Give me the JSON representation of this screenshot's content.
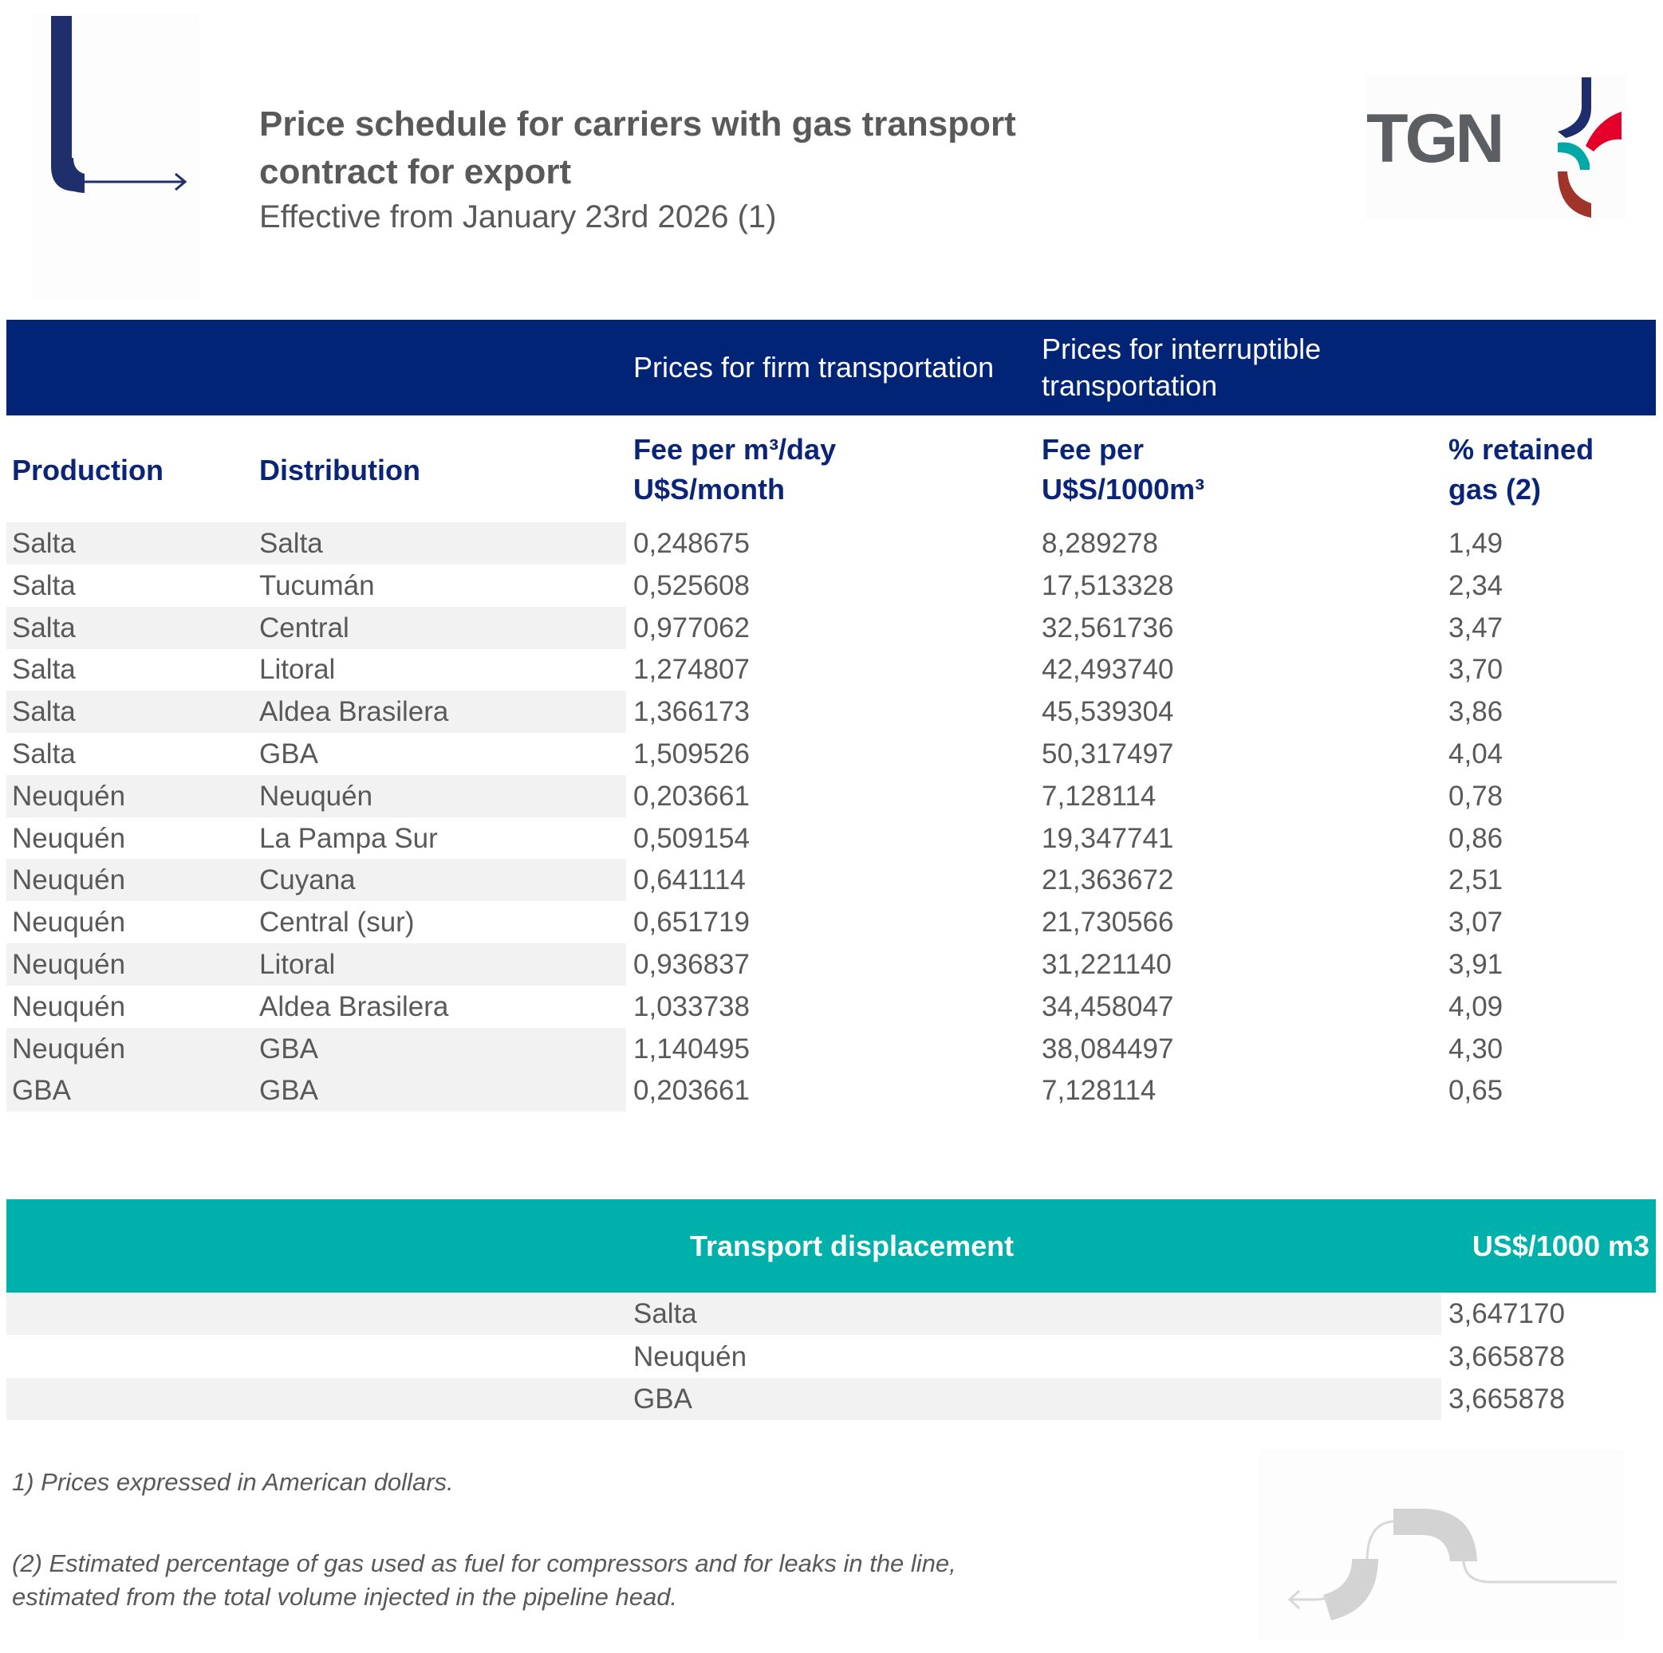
{
  "header": {
    "title_line1": "Price schedule for carriers with gas transport",
    "title_line2": "contract for export",
    "subtitle": "Effective from January 23rd 2026 (1)",
    "logo_text": "TGN"
  },
  "colors": {
    "header_blue": "#012477",
    "teal": "#00b0aa",
    "row_shade": "#f2f2f2",
    "text": "#595959",
    "logo_red": "#e4002b",
    "logo_teal": "#00a9a5",
    "logo_navy": "#1e2d6e",
    "logo_brown": "#a0342a"
  },
  "table": {
    "group_headers": {
      "firm": "Prices for firm transportation",
      "interruptible": "Prices for interruptible transportation"
    },
    "columns": {
      "production": "Production",
      "distribution": "Distribution",
      "firm_l1": "Fee per m³/day",
      "firm_l2": "U$S/month",
      "inter_l1": "Fee per",
      "inter_l2": "U$S/1000m³",
      "ret_l1": "% retained",
      "ret_l2": "gas (2)"
    },
    "rows": [
      [
        "Salta",
        "Salta",
        "0,248675",
        "8,289278",
        "1,49"
      ],
      [
        "Salta",
        "Tucumán",
        "0,525608",
        "17,513328",
        "2,34"
      ],
      [
        "Salta",
        "Central",
        "0,977062",
        "32,561736",
        "3,47"
      ],
      [
        "Salta",
        "Litoral",
        "1,274807",
        "42,493740",
        "3,70"
      ],
      [
        "Salta",
        "Aldea Brasilera",
        "1,366173",
        "45,539304",
        "3,86"
      ],
      [
        "Salta",
        "GBA",
        "1,509526",
        "50,317497",
        "4,04"
      ],
      [
        "Neuquén",
        "Neuquén",
        "0,203661",
        "7,128114",
        "0,78"
      ],
      [
        "Neuquén",
        "La Pampa Sur",
        "0,509154",
        "19,347741",
        "0,86"
      ],
      [
        "Neuquén",
        "Cuyana",
        "0,641114",
        "21,363672",
        "2,51"
      ],
      [
        "Neuquén",
        "Central (sur)",
        "0,651719",
        "21,730566",
        "3,07"
      ],
      [
        "Neuquén",
        "Litoral",
        "0,936837",
        "31,221140",
        "3,91"
      ],
      [
        "Neuquén",
        "Aldea Brasilera",
        "1,033738",
        "34,458047",
        "4,09"
      ],
      [
        "Neuquén",
        "GBA",
        "1,140495",
        "38,084497",
        "4,30"
      ],
      [
        "GBA",
        "GBA",
        "0,203661",
        "7,128114",
        "0,65"
      ]
    ]
  },
  "displacement": {
    "title": "Transport displacement",
    "unit": "US$/1000 m3",
    "rows": [
      [
        "Salta",
        "3,647170"
      ],
      [
        "Neuquén",
        "3,665878"
      ],
      [
        "GBA",
        "3,665878"
      ]
    ]
  },
  "notes": {
    "n1": "1) Prices expressed in American dollars.",
    "n2_l1": "(2) Estimated percentage of gas used as fuel for compressors and for leaks in the line,",
    "n2_l2": "estimated from the total volume injected in the pipeline head."
  }
}
